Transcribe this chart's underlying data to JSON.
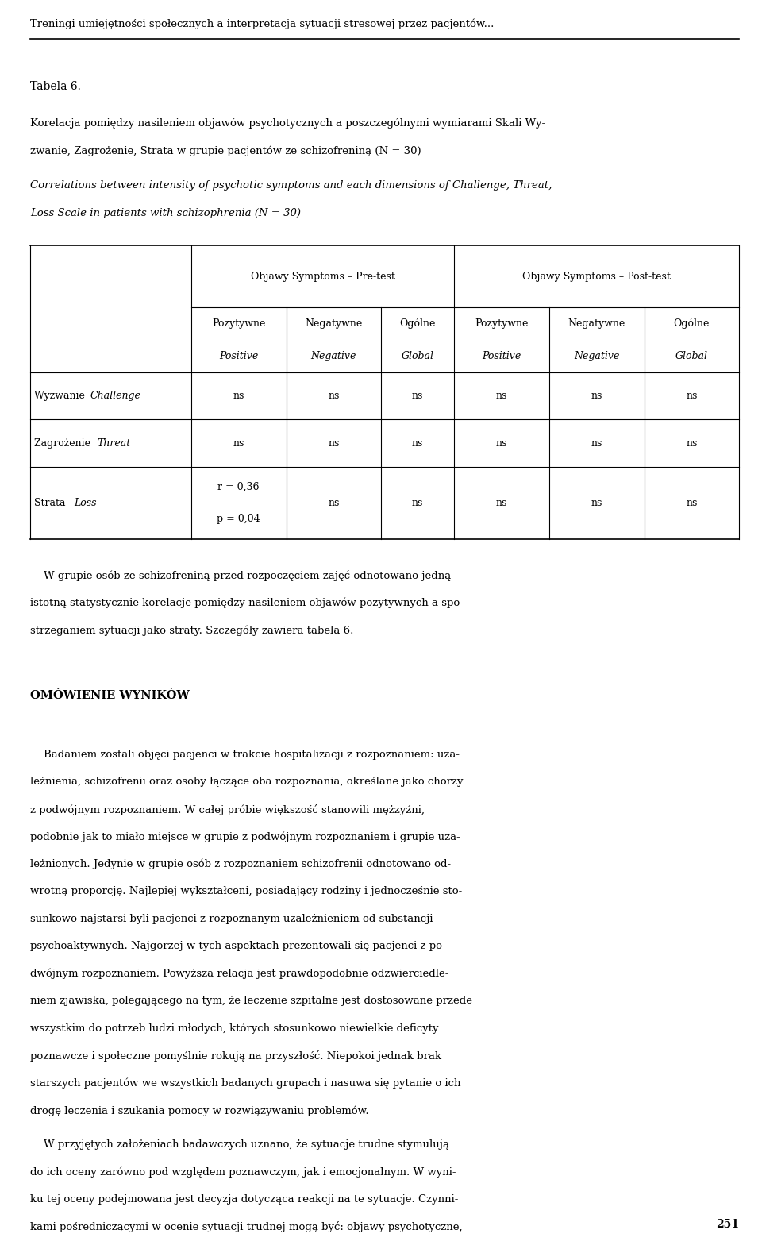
{
  "bg_color": "#ffffff",
  "text_color": "#000000",
  "page_width": 9.6,
  "page_height": 15.68,
  "header_line": "Treningi umiejętności społecznych a interpretacja sytuacji stresowej przez pacjentów...",
  "table_label": "Tabela 6.",
  "table_title_pl1": "Korelacja pomiędzy nasileniem objawów psychotycznych a poszczególnymi wymiarami Skali Wy-",
  "table_title_pl2": "zwanie, Zagrożenie, Strata w grupie pacjentów ze schizofreniną (N = 30)",
  "table_title_en1": "Correlations between intensity of psychotic symptoms and each dimensions of Challenge, Threat,",
  "table_title_en2": "Loss Scale in patients with schizophrenia (N = 30)",
  "col_header_group1": "Objawy Symptoms – Pre-test",
  "col_header_group2": "Objawy Symptoms – Post-test",
  "row1_data": [
    "ns",
    "ns",
    "ns",
    "ns",
    "ns",
    "ns"
  ],
  "row2_data": [
    "ns",
    "ns",
    "ns",
    "ns",
    "ns",
    "ns"
  ],
  "row3_col1_line1": "r = 0,36",
  "row3_col1_line2": "p = 0,04",
  "row3_data_rest": [
    "ns",
    "ns",
    "ns",
    "ns",
    "ns"
  ],
  "page_num": "251"
}
